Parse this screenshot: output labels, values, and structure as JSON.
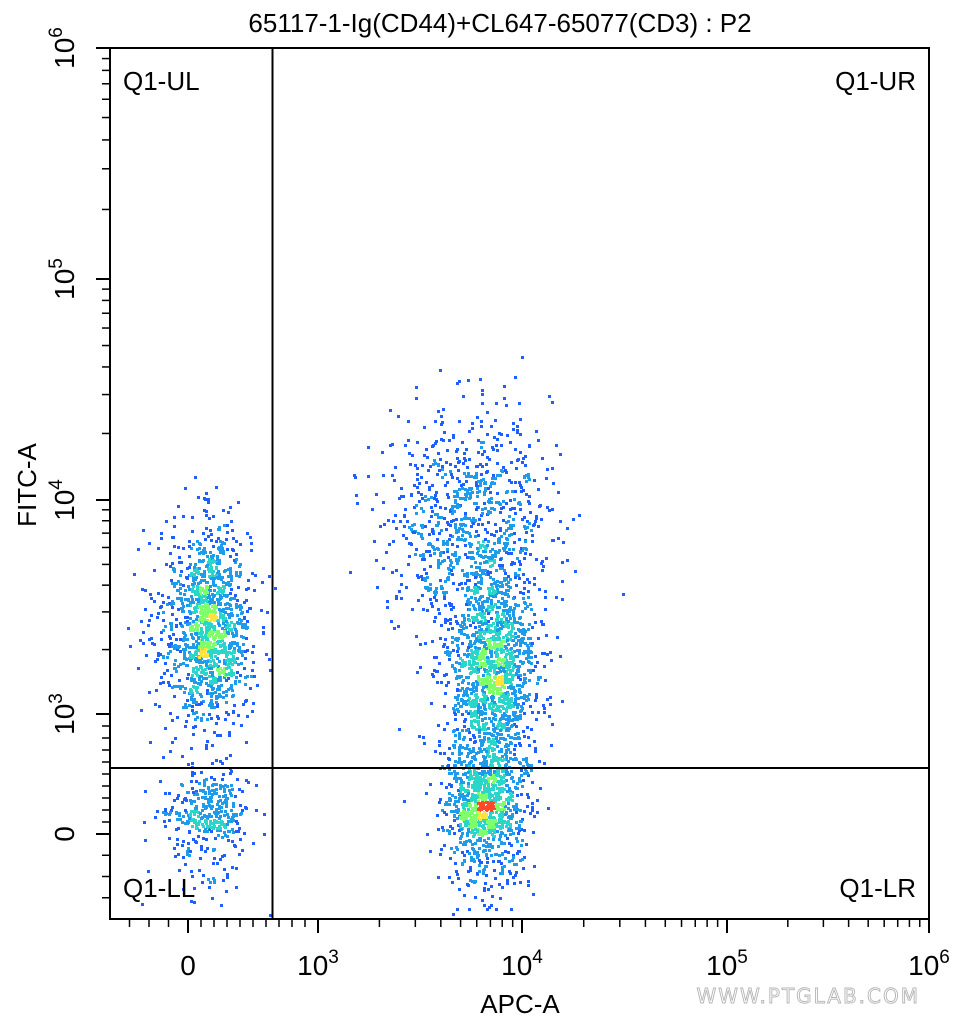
{
  "chart_data": {
    "type": "scatter",
    "title": "65117-1-Ig(CD44)+CL647-65077(CD3) : P2",
    "xlabel": "APC-A",
    "ylabel": "FITC-A",
    "x_scale": "biexponential",
    "y_scale": "biexponential",
    "xlim": [
      -400,
      1000000
    ],
    "ylim": [
      -400,
      1000000
    ],
    "x_ticks": [
      {
        "value": 0,
        "base": "0",
        "exp": ""
      },
      {
        "value": 1000,
        "base": "10",
        "exp": "3"
      },
      {
        "value": 10000,
        "base": "10",
        "exp": "4"
      },
      {
        "value": 100000,
        "base": "10",
        "exp": "5"
      },
      {
        "value": 1000000,
        "base": "10",
        "exp": "6"
      }
    ],
    "y_ticks": [
      {
        "value": 0,
        "base": "0",
        "exp": ""
      },
      {
        "value": 1000,
        "base": "10",
        "exp": "3"
      },
      {
        "value": 10000,
        "base": "10",
        "exp": "4"
      },
      {
        "value": 100000,
        "base": "10",
        "exp": "5"
      },
      {
        "value": 1000000,
        "base": "10",
        "exp": "6"
      }
    ],
    "gate": {
      "x_threshold": 650,
      "y_threshold": 550
    },
    "quadrant_labels": {
      "ul": "Q1-UL",
      "ur": "Q1-UR",
      "ll": "Q1-LL",
      "lr": "Q1-LR"
    },
    "populations": [
      {
        "name": "",
        "x_center": 150,
        "x_spread": 160,
        "y_center": 2600,
        "y_spread": 0.23,
        "count": 1300
      },
      {
        "name": "",
        "x_center": 7000,
        "x_spread": 0.11,
        "y_center": 1500,
        "y_spread": 0.26,
        "count": 1500
      },
      {
        "name": "",
        "x_center": 5500,
        "x_spread": 0.2,
        "y_center": 8000,
        "y_spread": 0.25,
        "count": 900
      },
      {
        "name": "",
        "x_center": 6500,
        "x_spread": 0.1,
        "y_center": 200,
        "y_spread": 230,
        "count": 900
      },
      {
        "name": "",
        "x_center": 150,
        "x_spread": 150,
        "y_center": 150,
        "y_spread": 200,
        "count": 380
      }
    ],
    "grid": false,
    "colormap": [
      "#1f5fff",
      "#1e9bea",
      "#29d6c9",
      "#7fff6a",
      "#ffe23a",
      "#ff4a2a"
    ]
  },
  "watermark": "WWW.PTGLAB.COM"
}
